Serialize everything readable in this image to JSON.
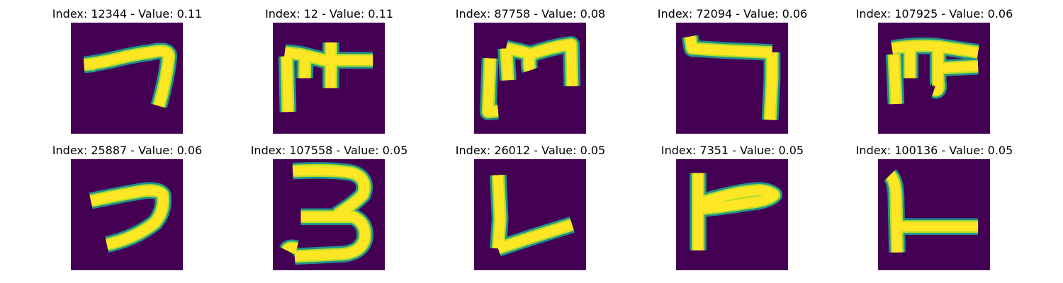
{
  "colors": {
    "background": "#440154",
    "stroke_core": "#fde725",
    "stroke_mid": "#b5de2b",
    "stroke_edge": "#21918c"
  },
  "panels": [
    {
      "title": "Index: 12344 - Value: 0.11",
      "glyph": "hook-seven"
    },
    {
      "title": "Index: 12 - Value: 0.11",
      "glyph": "double-t-frame"
    },
    {
      "title": "Index: 87758 - Value: 0.08",
      "glyph": "bracket-m"
    },
    {
      "title": "Index: 72094 - Value: 0.06",
      "glyph": "reverse-l"
    },
    {
      "title": "Index: 107925 - Value: 0.06",
      "glyph": "pi-shape"
    },
    {
      "title": "Index: 25887 - Value: 0.06",
      "glyph": "curved-seven"
    },
    {
      "title": "Index: 107558 - Value: 0.05",
      "glyph": "three-curl"
    },
    {
      "title": "Index: 26012 - Value: 0.05",
      "glyph": "v-check"
    },
    {
      "title": "Index: 7351 - Value: 0.05",
      "glyph": "flag-f"
    },
    {
      "title": "Index: 100136 - Value: 0.05",
      "glyph": "l-bar"
    }
  ]
}
